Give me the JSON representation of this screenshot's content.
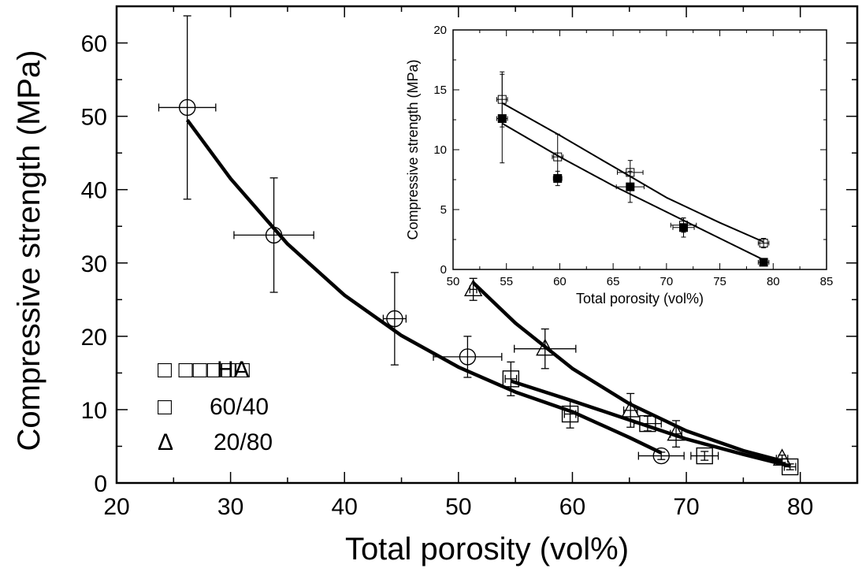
{
  "chart_data": [
    {
      "type": "scatter",
      "xlabel": "Total porosity (vol%)",
      "ylabel": "Compressive strength (MPa)",
      "xlim": [
        20,
        85
      ],
      "ylim": [
        0,
        65
      ],
      "xticks": [
        20,
        30,
        40,
        50,
        60,
        70,
        80
      ],
      "yticks": [
        0,
        10,
        20,
        30,
        40,
        50,
        60
      ],
      "grid": false,
      "legend_position": "left",
      "legend": [
        {
          "symbol": "□ □□□□□",
          "label": "HA",
          "marker": "circle"
        },
        {
          "symbol": "□",
          "label": "60/40",
          "marker": "square"
        },
        {
          "symbol": "Δ",
          "label": "20/80",
          "marker": "triangle"
        }
      ],
      "series": [
        {
          "marker": "circle",
          "points": [
            {
              "x": 26.2,
              "y": 51.2,
              "xerr": 2.5,
              "yerr": 12.5
            },
            {
              "x": 33.8,
              "y": 33.8,
              "xerr": 3.5,
              "yerr": 7.8
            },
            {
              "x": 44.4,
              "y": 22.4,
              "xerr": 1.0,
              "yerr": 6.3
            },
            {
              "x": 50.8,
              "y": 17.2,
              "xerr": 3.0,
              "yerr": 2.8
            },
            {
              "x": 67.8,
              "y": 3.7,
              "xerr": 2.0,
              "yerr": 0.5
            }
          ],
          "fit": [
            [
              26.2,
              49.5
            ],
            [
              30,
              41.5
            ],
            [
              35,
              32.6
            ],
            [
              40,
              25.6
            ],
            [
              45,
              20.1
            ],
            [
              50,
              15.8
            ],
            [
              55,
              12.4
            ],
            [
              60,
              9.7
            ],
            [
              65,
              6.2
            ],
            [
              67.8,
              4.1
            ]
          ]
        },
        {
          "marker": "square",
          "points": [
            {
              "x": 54.6,
              "y": 14.2,
              "xerr": 0.5,
              "yerr": 2.3
            },
            {
              "x": 59.8,
              "y": 9.4,
              "xerr": 0.5,
              "yerr": 1.9
            },
            {
              "x": 66.6,
              "y": 8.1,
              "xerr": 1.2,
              "yerr": 1.0
            },
            {
              "x": 71.6,
              "y": 3.7,
              "xerr": 1.2,
              "yerr": 0.6
            },
            {
              "x": 79.1,
              "y": 2.2,
              "xerr": 0.5,
              "yerr": 0.4
            }
          ],
          "fit": [
            [
              54.6,
              13.9
            ],
            [
              60,
              11.2
            ],
            [
              65,
              8.6
            ],
            [
              70,
              6.0
            ],
            [
              75,
              3.9
            ],
            [
              79.1,
              2.3
            ]
          ]
        },
        {
          "marker": "triangle",
          "points": [
            {
              "x": 51.3,
              "y": 26.4,
              "xerr": 0.3,
              "yerr": 1.5
            },
            {
              "x": 57.6,
              "y": 18.3,
              "xerr": 2.7,
              "yerr": 2.7
            },
            {
              "x": 65.1,
              "y": 9.9,
              "xerr": 0.6,
              "yerr": 2.3
            },
            {
              "x": 69.1,
              "y": 6.7,
              "xerr": 0.5,
              "yerr": 1.8
            },
            {
              "x": 78.4,
              "y": 3.3,
              "xerr": 0.5,
              "yerr": 0.5
            }
          ],
          "fit": [
            [
              51.3,
              27.3
            ],
            [
              55,
              21.8
            ],
            [
              60,
              15.6
            ],
            [
              65,
              10.8
            ],
            [
              70,
              7.1
            ],
            [
              75,
              4.4
            ],
            [
              78.4,
              3.0
            ]
          ]
        }
      ]
    },
    {
      "type": "scatter",
      "xlabel": "Total porosity (vol%)",
      "ylabel": "Compressive strength (MPa)",
      "xlim": [
        50,
        85
      ],
      "ylim": [
        0,
        20
      ],
      "xticks": [
        50,
        55,
        60,
        65,
        70,
        75,
        80,
        85
      ],
      "yticks": [
        0,
        5,
        10,
        15,
        20
      ],
      "grid": false,
      "series": [
        {
          "marker": "open-square",
          "points": [
            {
              "x": 54.6,
              "y": 14.2,
              "xerr": 0.5,
              "yerr": 2.3
            },
            {
              "x": 59.8,
              "y": 9.4,
              "xerr": 0.5,
              "yerr": 1.9
            },
            {
              "x": 66.6,
              "y": 8.1,
              "xerr": 1.2,
              "yerr": 1.0
            },
            {
              "x": 71.6,
              "y": 3.7,
              "xerr": 1.2,
              "yerr": 0.6
            },
            {
              "x": 79.1,
              "y": 2.2,
              "xerr": 0.5,
              "yerr": 0.4
            }
          ],
          "fit": [
            [
              54.6,
              13.9
            ],
            [
              60,
              11.2
            ],
            [
              65,
              8.6
            ],
            [
              70,
              6.0
            ],
            [
              75,
              3.9
            ],
            [
              79.1,
              2.3
            ]
          ]
        },
        {
          "marker": "filled-square",
          "points": [
            {
              "x": 54.6,
              "y": 12.6,
              "xerr": 0.5,
              "yerr": 3.7
            },
            {
              "x": 59.8,
              "y": 7.6,
              "xerr": 0.4,
              "yerr": 0.6
            },
            {
              "x": 66.6,
              "y": 6.9,
              "xerr": 1.3,
              "yerr": 1.3
            },
            {
              "x": 71.6,
              "y": 3.5,
              "xerr": 1.0,
              "yerr": 0.8
            },
            {
              "x": 79.1,
              "y": 0.6,
              "xerr": 0.5,
              "yerr": 0.3
            }
          ],
          "fit": [
            [
              54.6,
              12.2
            ],
            [
              60,
              9.4
            ],
            [
              65,
              7.0
            ],
            [
              70,
              4.8
            ],
            [
              75,
              2.6
            ],
            [
              79.1,
              0.8
            ]
          ]
        }
      ]
    }
  ]
}
